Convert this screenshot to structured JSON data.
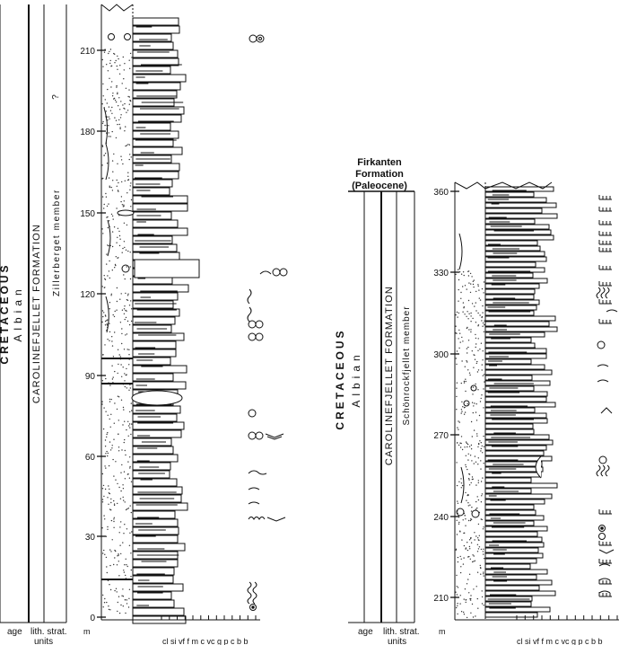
{
  "left_log": {
    "strat_columns": {
      "era": "CRETACEOUS",
      "stage": "Albian",
      "formation": "CAROLINEFJELLET FORMATION",
      "member": "Zillerberget member",
      "uncertain_mark": "?"
    },
    "footer": {
      "age": "age",
      "lith_strat_line1": "lith. strat.",
      "lith_strat_line2": "units",
      "unit": "m"
    },
    "depth_range": [
      0,
      225
    ],
    "depth_ticks": [
      "0",
      "30",
      "60",
      "90",
      "120",
      "150",
      "180",
      "210"
    ],
    "grain_size_scale": "cl si vf f m c vc g p c b b"
  },
  "right_log": {
    "overlying_unit": {
      "line1": "Firkanten",
      "line2": "Formation",
      "line3": "(Paleocene)"
    },
    "strat_columns": {
      "era": "CRETACEOUS",
      "stage": "Albian",
      "formation": "CAROLINEFJELLET FORMATION",
      "member": "Schönrockfjellet member"
    },
    "footer": {
      "age": "age",
      "lith_strat_line1": "lith. strat.",
      "lith_strat_line2": "units",
      "unit": "m"
    },
    "depth_range": [
      200,
      363
    ],
    "depth_ticks": [
      "210",
      "240",
      "270",
      "300",
      "330",
      "360"
    ],
    "grain_size_scale": "cl si vf f m c vc g p c b b"
  },
  "colors": {
    "ink": "#111111",
    "shale_fill": "#ffffff",
    "sand_dots": "#333333"
  }
}
